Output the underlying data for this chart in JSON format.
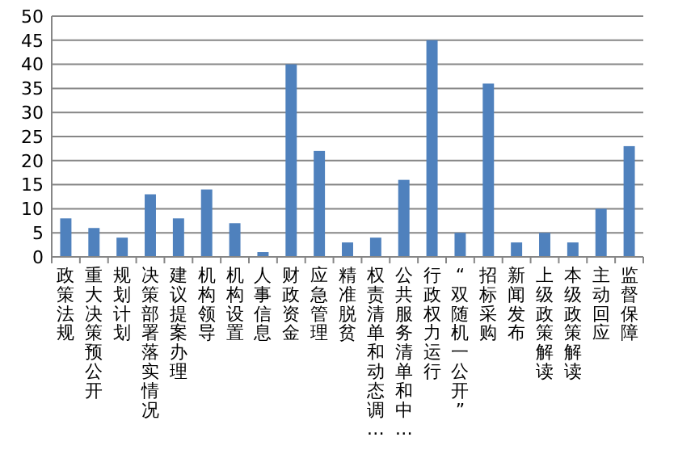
{
  "chart_data": {
    "type": "bar",
    "categories": [
      "政策法规",
      "重大决策预公开",
      "规划计划",
      "决策部署落实情况",
      "建议提案办理",
      "机构领导",
      "机构设置",
      "人事信息",
      "财政资金",
      "应急管理",
      "精准脱贫",
      "权责清单和动态调…",
      "公共服务清单和中…",
      "行政权力运行",
      "“双随机一公开”",
      "招标采购",
      "新闻发布",
      "上级政策解读",
      "本级政策解读",
      "主动回应",
      "监督保障"
    ],
    "values": [
      8,
      6,
      4,
      13,
      8,
      14,
      7,
      1,
      40,
      22,
      3,
      4,
      16,
      45,
      5,
      36,
      3,
      5,
      3,
      10,
      23
    ],
    "color": "#4f81bd",
    "ylim": [
      0,
      50
    ],
    "yticks": [
      0,
      5,
      10,
      15,
      20,
      25,
      30,
      35,
      40,
      45,
      50
    ],
    "grid": "y"
  }
}
